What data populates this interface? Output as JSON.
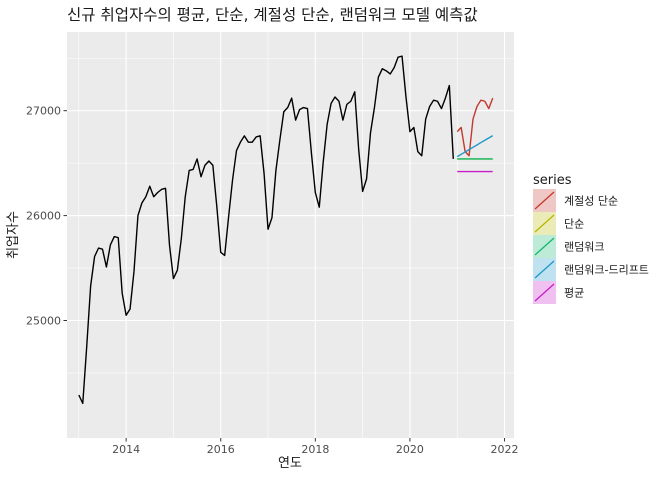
{
  "chart_data": {
    "type": "line",
    "title": "신규 취업자수의 평균, 단순, 계절성 단순, 랜덤워크 모델 예측값",
    "xlabel": "연도",
    "ylabel": "취업자수",
    "xlim": [
      2012.75,
      2022.2
    ],
    "ylim": [
      23880,
      27750
    ],
    "x_ticks": [
      2014,
      2016,
      2018,
      2020,
      2022
    ],
    "y_ticks": [
      25000,
      26000,
      27000
    ],
    "grid": true,
    "legend_position": "right",
    "legend_title": "series",
    "background": "#ebebeb",
    "grid_color": "#ffffff",
    "actual": {
      "start": 2013.0,
      "step": 0.08333,
      "color": "#000000",
      "values": [
        24290,
        24210,
        24750,
        25330,
        25610,
        25690,
        25680,
        25510,
        25720,
        25800,
        25790,
        25260,
        25050,
        25110,
        25470,
        26000,
        26120,
        26180,
        26280,
        26180,
        26220,
        26250,
        26260,
        25720,
        25400,
        25480,
        25780,
        26180,
        26430,
        26440,
        26540,
        26370,
        26480,
        26520,
        26480,
        26090,
        25650,
        25620,
        25990,
        26340,
        26620,
        26700,
        26760,
        26700,
        26700,
        26750,
        26760,
        26400,
        25870,
        25980,
        26430,
        26720,
        26990,
        27030,
        27120,
        26910,
        27010,
        27030,
        27020,
        26600,
        26220,
        26080,
        26510,
        26870,
        27070,
        27130,
        27090,
        26910,
        27060,
        27090,
        27180,
        26630,
        26230,
        26350,
        26790,
        27030,
        27320,
        27400,
        27380,
        27350,
        27410,
        27510,
        27520,
        27130,
        26800,
        26840,
        26610,
        26570,
        26920,
        27040,
        27100,
        27090,
        27020,
        27120,
        27240,
        26540
      ]
    },
    "forecast_start": 2021.0,
    "forecast_step": 0.08333,
    "series": [
      {
        "name": "계절성 단순",
        "color": "#c5382e",
        "values": [
          26800,
          26840,
          26610,
          26570,
          26920,
          27040,
          27100,
          27090,
          27020,
          27120
        ]
      },
      {
        "name": "단순",
        "color": "#b8b800",
        "values": [
          26540,
          26540,
          26540,
          26540,
          26540,
          26540,
          26540,
          26540,
          26540,
          26540
        ]
      },
      {
        "name": "랜덤워크",
        "color": "#12b86e",
        "values": [
          26540,
          26540,
          26540,
          26540,
          26540,
          26540,
          26540,
          26540,
          26540,
          26540
        ]
      },
      {
        "name": "랜덤워크-드리프트",
        "color": "#1d98c9",
        "values": [
          26562,
          26584,
          26607,
          26629,
          26651,
          26673,
          26696,
          26718,
          26740,
          26762
        ]
      },
      {
        "name": "평균",
        "color": "#c61ec9",
        "values": [
          26420,
          26420,
          26420,
          26420,
          26420,
          26420,
          26420,
          26420,
          26420,
          26420
        ]
      }
    ]
  }
}
